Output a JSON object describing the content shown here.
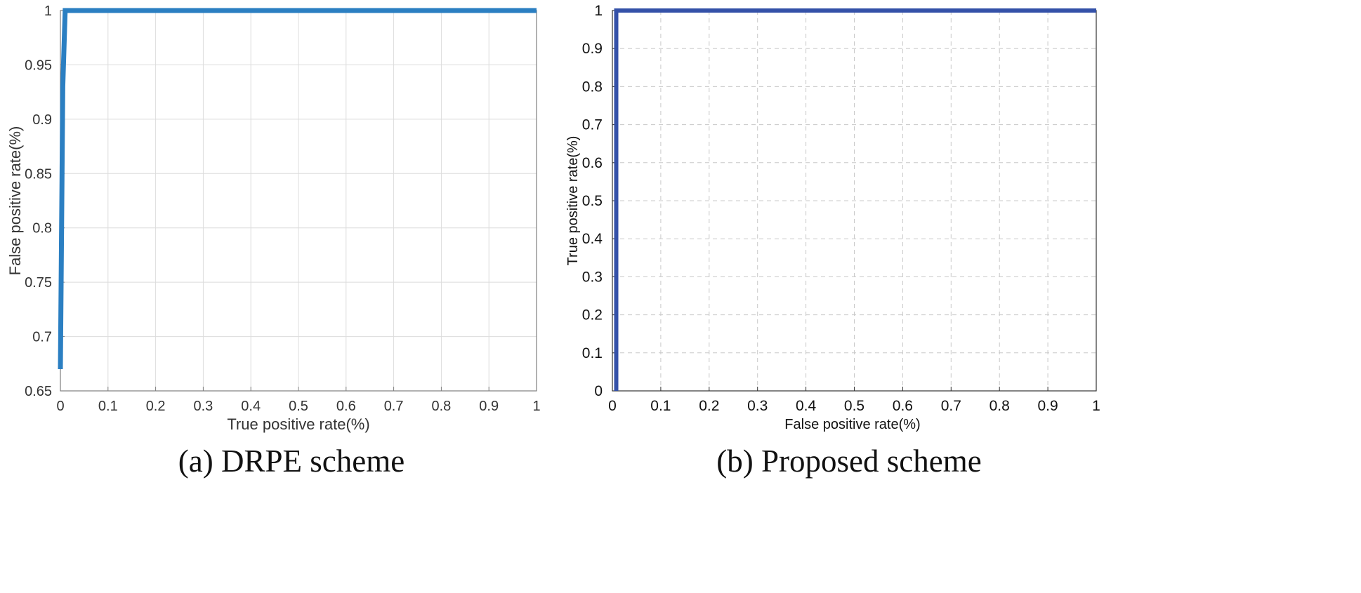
{
  "chart_data": [
    {
      "type": "line",
      "caption": "(a) DRPE scheme",
      "xlabel": "True positive rate(%)",
      "ylabel": "False positive rate(%)",
      "xlim": [
        0,
        1
      ],
      "ylim": [
        0.65,
        1
      ],
      "x_ticks": [
        "0",
        "0.1",
        "0.2",
        "0.3",
        "0.4",
        "0.5",
        "0.6",
        "0.7",
        "0.8",
        "0.9",
        "1"
      ],
      "y_ticks": [
        "0.65",
        "0.7",
        "0.75",
        "0.8",
        "0.85",
        "0.9",
        "0.95",
        "1"
      ],
      "grid": "solid",
      "line_color": "#2B7FC2",
      "series": [
        {
          "x": [
            0,
            0.005,
            0.01,
            1
          ],
          "y": [
            0.67,
            0.93,
            1,
            1
          ]
        }
      ]
    },
    {
      "type": "line",
      "caption": "(b)  Proposed  scheme",
      "xlabel": "False positive rate(%)",
      "ylabel": "True positive rate(%)",
      "xlim": [
        0,
        1
      ],
      "ylim": [
        0,
        1
      ],
      "x_ticks": [
        "0",
        "0.1",
        "0.2",
        "0.3",
        "0.4",
        "0.5",
        "0.6",
        "0.7",
        "0.8",
        "0.9",
        "1"
      ],
      "y_ticks": [
        "0",
        "0.1",
        "0.2",
        "0.3",
        "0.4",
        "0.5",
        "0.6",
        "0.7",
        "0.8",
        "0.9",
        "1"
      ],
      "grid": "dashed",
      "line_color": "#3451A8",
      "series": [
        {
          "x": [
            0.008,
            0.008,
            1
          ],
          "y": [
            0,
            1,
            1
          ]
        }
      ]
    }
  ]
}
